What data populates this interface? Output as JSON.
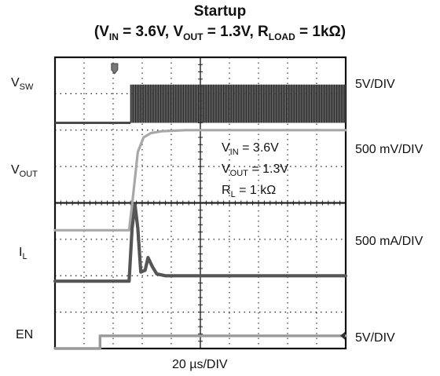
{
  "title": {
    "main": "Startup",
    "cond_vin_label": "V",
    "cond_vin_sub": "IN",
    "cond_vin_value": "= 3.6V,",
    "cond_vout_label": "V",
    "cond_vout_sub": "OUT",
    "cond_vout_value": "= 1.3V,",
    "cond_rload_label": "R",
    "cond_rload_sub": "LOAD",
    "cond_rload_value": "= 1kΩ"
  },
  "channels": [
    {
      "label": "V",
      "sub": "SW",
      "scale": "5V/DIV"
    },
    {
      "label": "V",
      "sub": "OUT",
      "scale": "500 mV/DIV"
    },
    {
      "label": "I",
      "sub": "L",
      "scale": "500 mA/DIV"
    },
    {
      "label": "EN",
      "sub": "",
      "scale": "5V/DIV"
    }
  ],
  "annotation": {
    "vin_label": "V",
    "vin_sub": "IN",
    "vin_value": "= 3.6V",
    "vout_label": "V",
    "vout_sub": "OUT",
    "vout_value": "= 1.3V",
    "rl_label": "R",
    "rl_sub": "L",
    "rl_value": "= 1 kΩ"
  },
  "xaxis_label": "20 µs/DIV",
  "chart_data": {
    "type": "line",
    "x_divisions": 10,
    "y_divisions": 8,
    "grid": true,
    "colors": {
      "vsw": "#4a4a4a",
      "vout": "#a8a8a8",
      "il": "#555555",
      "en": "#9a9a9a"
    },
    "series": [
      {
        "name": "VSW",
        "x": [
          0,
          2.6,
          2.6,
          10
        ],
        "y": [
          6.2,
          6.2,
          7.25,
          7.25
        ]
      },
      {
        "name": "VOUT",
        "x": [
          0,
          2.55,
          2.7,
          2.85,
          3.05,
          3.3,
          3.7,
          4.5,
          10
        ],
        "y": [
          3.25,
          3.25,
          4.3,
          5.4,
          5.8,
          5.92,
          5.97,
          6.0,
          6.0
        ]
      },
      {
        "name": "IL",
        "x": [
          0,
          2.55,
          2.65,
          2.75,
          2.85,
          2.95,
          3.1,
          3.2,
          3.35,
          3.5,
          3.8,
          4.5,
          10
        ],
        "y": [
          1.85,
          1.85,
          3.3,
          3.95,
          3.3,
          2.1,
          2.15,
          2.5,
          2.25,
          2.05,
          2.0,
          2.0,
          2.0
        ]
      },
      {
        "name": "EN",
        "x": [
          0,
          1.55,
          1.55,
          10
        ],
        "y": [
          0.0,
          0.0,
          0.35,
          0.35
        ]
      }
    ]
  }
}
